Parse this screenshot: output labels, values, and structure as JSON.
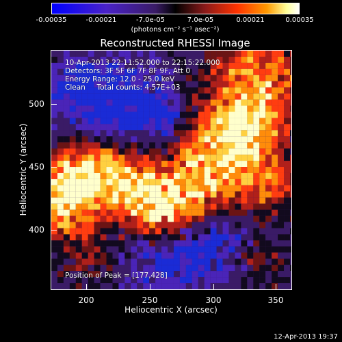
{
  "colorbar": {
    "ticks": [
      "-0.00035",
      "-0.00021",
      "-7.0e-05",
      "7.0e-05",
      "0.00021",
      "0.00035"
    ],
    "unit_label": "(photons cm⁻² s⁻¹ asec⁻²)",
    "colors": [
      "#0000ff",
      "#5a1fb3",
      "#3a1b66",
      "#000000",
      "#8b1a1a",
      "#ff3300",
      "#ff9900",
      "#ffff99",
      "#ffffff"
    ]
  },
  "title": "Reconstructed RHESSI Image",
  "info_lines": [
    "10-Apr-2013 22:11:52.000 to 22:15:22.000",
    "Detectors: 3F 5F 6F 7F 8F 9F, Att 0",
    "Energy Range: 12.0 - 25.0 keV",
    "Clean     Total counts: 4.57E+03"
  ],
  "peak_text": "Position of Peak = [177,428]",
  "x_axis": {
    "label": "Heliocentric X (arcsec)",
    "ticks": [
      "200",
      "250",
      "300",
      "350"
    ]
  },
  "y_axis": {
    "label": "Heliocentric Y (arcsec)",
    "ticks": [
      "500",
      "450",
      "400"
    ]
  },
  "timestamp": "12-Apr-2013 19:37",
  "chart_data": {
    "type": "heatmap",
    "title": "Reconstructed RHESSI Image",
    "xlabel": "Heliocentric X (arcsec)",
    "ylabel": "Heliocentric Y (arcsec)",
    "xlim": [
      170,
      365
    ],
    "ylim": [
      350,
      546
    ],
    "color_range": [
      -0.00035,
      0.00035
    ],
    "colorbar_ticks": [
      -0.00035,
      -0.00021,
      -7e-05,
      7e-05,
      0.00021,
      0.00035
    ],
    "peak_position": [
      177,
      428
    ]
  }
}
